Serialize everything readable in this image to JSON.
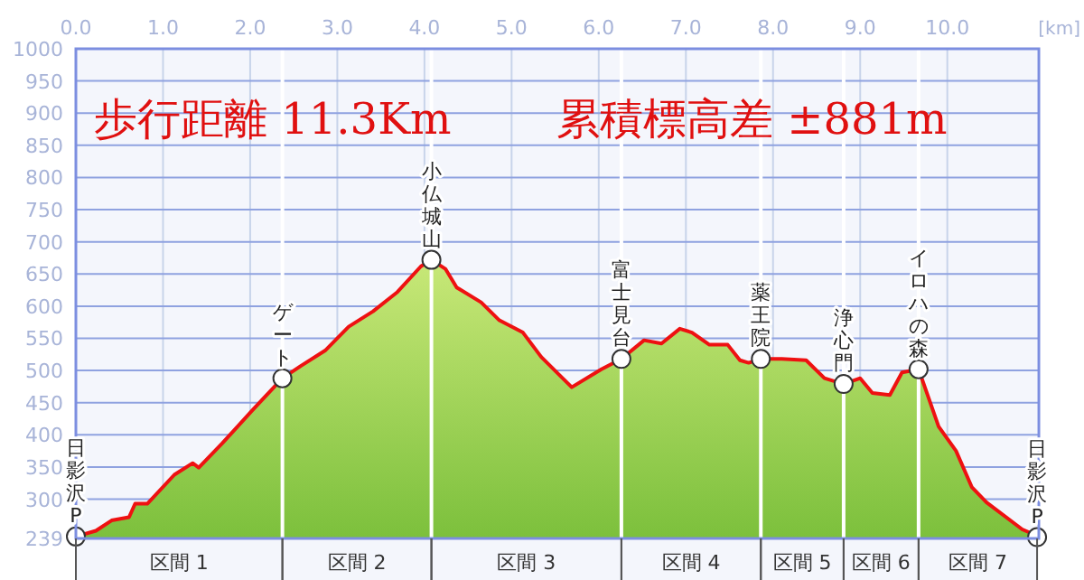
{
  "chart_data": {
    "type": "area",
    "title": "歩行距離  11.3Km",
    "subtitle": "累積標高差  ±881m",
    "xlabel": "[km]",
    "xlim": [
      0,
      11.05
    ],
    "ylim": [
      239,
      1000
    ],
    "xticks": [
      {
        "value": 0,
        "label": "0.0"
      },
      {
        "value": 1,
        "label": "1.0"
      },
      {
        "value": 2,
        "label": "2.0"
      },
      {
        "value": 3,
        "label": "3.0"
      },
      {
        "value": 4,
        "label": "4.0"
      },
      {
        "value": 5,
        "label": "5.0"
      },
      {
        "value": 6,
        "label": "6.0"
      },
      {
        "value": 7,
        "label": "7.0"
      },
      {
        "value": 8,
        "label": "8.0"
      },
      {
        "value": 9,
        "label": "9.0"
      },
      {
        "value": 10,
        "label": "10.0"
      }
    ],
    "yticks": [
      239,
      300,
      350,
      400,
      450,
      500,
      550,
      600,
      650,
      700,
      750,
      800,
      850,
      900,
      950,
      1000
    ],
    "grid": true,
    "series": [
      {
        "color": "#ee1111",
        "x": [
          0,
          0.23,
          0.41,
          0.61,
          0.68,
          0.82,
          1.13,
          1.34,
          1.41,
          1.68,
          2.03,
          2.37,
          2.58,
          2.86,
          3.13,
          3.41,
          3.69,
          3.96,
          4.08,
          4.24,
          4.37,
          4.65,
          4.86,
          5.13,
          5.34,
          5.69,
          6.03,
          6.26,
          6.52,
          6.72,
          6.93,
          7.07,
          7.27,
          7.48,
          7.62,
          7.72,
          7.86,
          8.1,
          8.38,
          8.59,
          8.81,
          9.0,
          9.14,
          9.34,
          9.48,
          9.67,
          9.9,
          10.1,
          10.28,
          10.45,
          10.86,
          11.0,
          11.03
        ],
        "values": [
          242,
          251,
          267,
          272,
          293,
          293,
          338,
          356,
          349,
          387,
          439,
          488,
          507,
          531,
          568,
          592,
          622,
          662,
          672,
          658,
          629,
          606,
          578,
          559,
          521,
          474,
          502,
          518,
          547,
          542,
          565,
          559,
          540,
          540,
          516,
          512,
          518,
          518,
          516,
          488,
          479,
          488,
          465,
          462,
          497,
          502,
          413,
          375,
          319,
          295,
          253,
          245,
          241
        ]
      },
      {
        "type": "scatter",
        "marker": "circle",
        "color": "#ffffff",
        "x": [
          0,
          2.37,
          4.08,
          6.26,
          7.86,
          8.81,
          9.67,
          11.03
        ],
        "values": [
          242,
          488,
          672,
          518,
          518,
          479,
          502,
          241
        ]
      }
    ],
    "ref_lines": [
      {
        "axis": "x",
        "value": 2.37,
        "color": "#ffffff"
      },
      {
        "axis": "x",
        "value": 4.08,
        "color": "#ffffff"
      },
      {
        "axis": "x",
        "value": 6.26,
        "color": "#ffffff"
      },
      {
        "axis": "x",
        "value": 7.86,
        "color": "#ffffff"
      },
      {
        "axis": "x",
        "value": 8.81,
        "color": "#ffffff"
      },
      {
        "axis": "x",
        "value": 9.67,
        "color": "#ffffff"
      }
    ],
    "bands": [
      {
        "axis": "x",
        "from": 0,
        "to": 2.37,
        "label": "区間 1",
        "color": "#f4f6fc"
      },
      {
        "axis": "x",
        "from": 2.37,
        "to": 4.08,
        "label": "区間 2",
        "color": "#f4f6fc"
      },
      {
        "axis": "x",
        "from": 4.08,
        "to": 6.26,
        "label": "区間 3",
        "color": "#f4f6fc"
      },
      {
        "axis": "x",
        "from": 6.26,
        "to": 7.86,
        "label": "区間 4",
        "color": "#f4f6fc"
      },
      {
        "axis": "x",
        "from": 7.86,
        "to": 8.81,
        "label": "区間 5",
        "color": "#f4f6fc"
      },
      {
        "axis": "x",
        "from": 8.81,
        "to": 9.67,
        "label": "区間 6",
        "color": "#f4f6fc"
      },
      {
        "axis": "x",
        "from": 9.67,
        "to": 11.03,
        "label": "区間 7",
        "color": "#f4f6fc"
      }
    ],
    "annotations": [
      {
        "text": "日影沢P",
        "x": 0,
        "y": 242
      },
      {
        "text": "ゲート",
        "x": 2.37,
        "y": 488
      },
      {
        "text": "小仏城山",
        "x": 4.08,
        "y": 672
      },
      {
        "text": "富士見台",
        "x": 6.26,
        "y": 518
      },
      {
        "text": "薬王院",
        "x": 7.86,
        "y": 518
      },
      {
        "text": "浄心門",
        "x": 8.81,
        "y": 479
      },
      {
        "text": "イロハの森",
        "x": 9.67,
        "y": 502
      },
      {
        "text": "日影沢P",
        "x": 11.03,
        "y": 241
      }
    ]
  }
}
